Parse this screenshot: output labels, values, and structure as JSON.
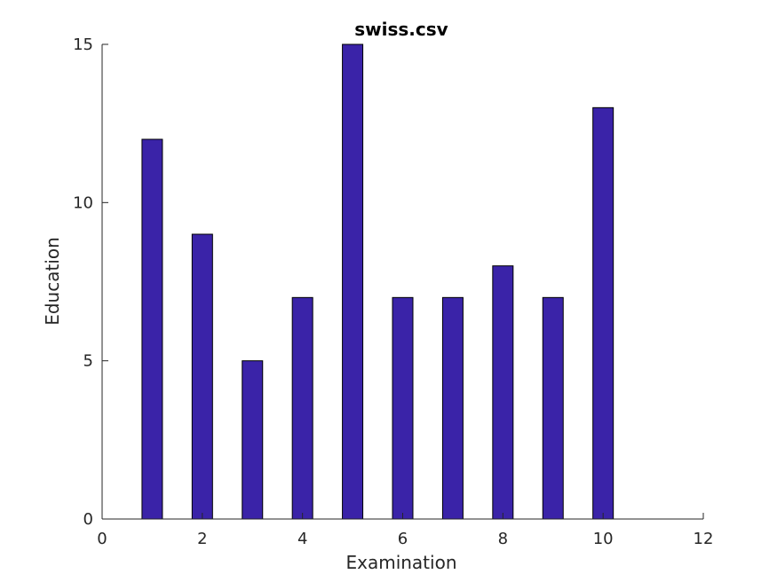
{
  "chart_data": {
    "type": "bar",
    "title": "swiss.csv",
    "xlabel": "Examination",
    "ylabel": "Education",
    "x": [
      1,
      2,
      3,
      4,
      5,
      6,
      7,
      8,
      9,
      10
    ],
    "values": [
      12,
      9,
      5,
      7,
      15,
      7,
      7,
      8,
      7,
      13
    ],
    "xlim": [
      0,
      12
    ],
    "ylim": [
      0,
      15
    ],
    "x_ticks": [
      "0",
      "2",
      "4",
      "6",
      "8",
      "10",
      "12"
    ],
    "y_ticks": [
      "0",
      "5",
      "10",
      "15"
    ],
    "grid": false,
    "bar_color": "#3a23a8",
    "bar_edge_color": "#000000"
  }
}
